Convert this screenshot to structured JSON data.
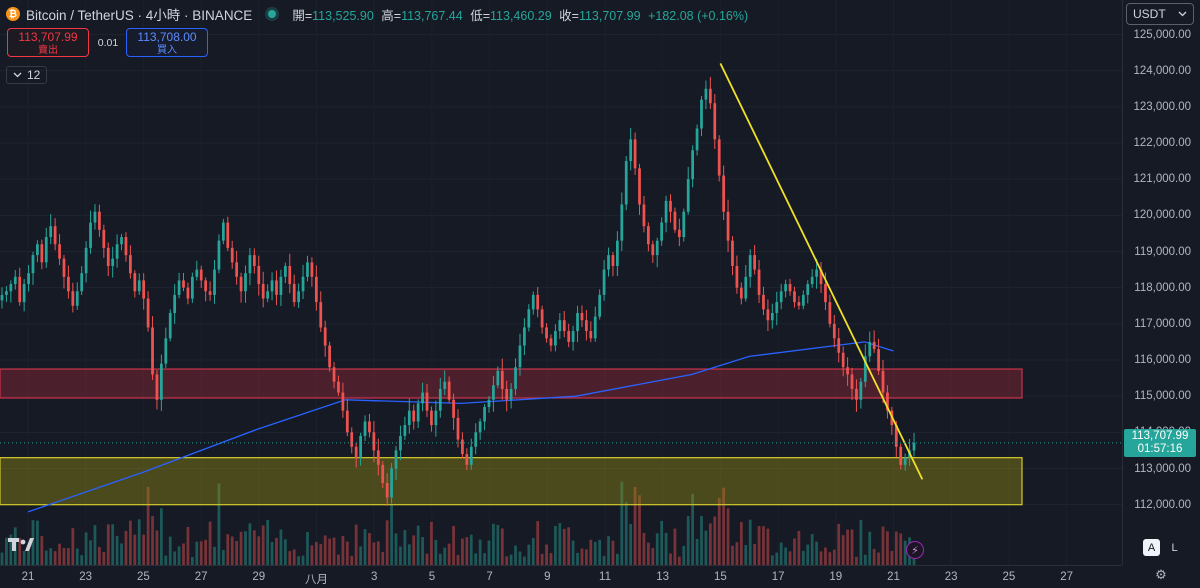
{
  "header": {
    "coin_glyph": "₿",
    "title": "Bitcoin / TetherUS · 4小時 · BINANCE",
    "open_label": "開=",
    "open_value": "113,525.90",
    "high_label": "高=",
    "high_value": "113,767.44",
    "low_label": "低=",
    "low_value": "113,460.29",
    "close_label": "收=",
    "close_value": "113,707.99",
    "change": "+182.08 (+0.16%)"
  },
  "trade": {
    "sell_price": "113,707.99",
    "sell_label": "賣出",
    "spread": "0.01",
    "buy_price": "113,708.00",
    "buy_label": "買入"
  },
  "indicator_toggle": {
    "count": "12"
  },
  "currency": {
    "label": "USDT"
  },
  "last_price": {
    "price": "113,707.99",
    "countdown": "01:57:16"
  },
  "scale_buttons": {
    "auto": "A",
    "log": "L"
  },
  "colors": {
    "up": "#26a69a",
    "down": "#ef5350",
    "ma": "#2962ff",
    "trendline": "#f2e027",
    "zone_red": "#b22a3a",
    "zone_yellow": "#c9c02a"
  },
  "icons": [
    "chevron-down-icon",
    "tradingview-logo-icon",
    "lightning-icon",
    "settings-gear-icon"
  ],
  "chart_data": {
    "type": "candlestick",
    "interval": "4h",
    "symbol": "BTCUSDT",
    "y_axis": {
      "scale": "linear",
      "ticks": [
        "125,000.00",
        "124,000.00",
        "123,000.00",
        "122,000.00",
        "121,000.00",
        "120,000.00",
        "119,000.00",
        "118,000.00",
        "117,000.00",
        "116,000.00",
        "115,000.00",
        "114,000.00",
        "113,000.00",
        "112,000.00"
      ],
      "tick_values": [
        125000,
        124000,
        123000,
        122000,
        121000,
        120000,
        119000,
        118000,
        117000,
        116000,
        115000,
        114000,
        113000,
        112000
      ]
    },
    "x_axis": {
      "ticks": [
        "21",
        "23",
        "25",
        "27",
        "29",
        "八月",
        "3",
        "5",
        "7",
        "9",
        "11",
        "13",
        "15",
        "17",
        "19",
        "21",
        "23",
        "25",
        "27"
      ]
    },
    "zones": [
      {
        "color": "red",
        "from": 114950,
        "to": 115750
      },
      {
        "color": "yellow",
        "from": 112000,
        "to": 113300
      }
    ],
    "trendline": {
      "from": {
        "date": "Aug 14",
        "price": 124200
      },
      "to": {
        "date": "Aug 21",
        "price": 112700
      }
    },
    "moving_average": [
      {
        "date": "Jul 21",
        "value": 111800
      },
      {
        "date": "Jul 25",
        "value": 112900
      },
      {
        "date": "Jul 29",
        "value": 114100
      },
      {
        "date": "Aug 1",
        "value": 114900
      },
      {
        "date": "Aug 5",
        "value": 114800
      },
      {
        "date": "Aug 9",
        "value": 115000
      },
      {
        "date": "Aug 13",
        "value": 115600
      },
      {
        "date": "Aug 15",
        "value": 116100
      },
      {
        "date": "Aug 19",
        "value": 116500
      },
      {
        "date": "Aug 20",
        "value": 116250
      }
    ],
    "candles_4h_close": [
      117800,
      117900,
      118100,
      118300,
      117600,
      118100,
      118400,
      118900,
      119200,
      118700,
      119400,
      119700,
      119200,
      118800,
      118300,
      117900,
      117500,
      117900,
      118400,
      119100,
      119800,
      120100,
      119600,
      119100,
      118600,
      118800,
      119200,
      119400,
      118900,
      118400,
      117900,
      118200,
      117700,
      116900,
      115600,
      114900,
      115900,
      116600,
      117300,
      117800,
      118200,
      118000,
      117700,
      118300,
      118500,
      118200,
      117900,
      117800,
      118500,
      119300,
      119800,
      119100,
      118700,
      118300,
      117900,
      118400,
      118900,
      118600,
      118100,
      117700,
      117900,
      118200,
      117800,
      118300,
      118600,
      118100,
      117600,
      117900,
      118300,
      118700,
      118300,
      117600,
      116900,
      116400,
      115800,
      115400,
      115100,
      114600,
      114000,
      113600,
      113300,
      113900,
      114300,
      114000,
      113500,
      113100,
      112600,
      112200,
      113000,
      113500,
      113900,
      114200,
      114600,
      114300,
      114800,
      115100,
      114600,
      114200,
      114600,
      115200,
      115400,
      114900,
      114400,
      113800,
      113400,
      113100,
      113600,
      114000,
      114300,
      114700,
      114900,
      115300,
      115700,
      115200,
      114900,
      115200,
      115800,
      116400,
      116900,
      117400,
      117800,
      117400,
      116900,
      116600,
      116400,
      116800,
      117100,
      116800,
      116500,
      116800,
      117300,
      117100,
      116800,
      116600,
      117200,
      117800,
      118500,
      118900,
      118600,
      119300,
      120300,
      121500,
      122100,
      121300,
      120300,
      119700,
      119200,
      118900,
      119300,
      119800,
      120400,
      120100,
      119600,
      119400,
      120100,
      121000,
      121800,
      122400,
      123200,
      123500,
      123100,
      122100,
      121100,
      120100,
      119300,
      118600,
      118000,
      117700,
      118300,
      118900,
      118500,
      117800,
      117400,
      117100,
      117300,
      117600,
      117900,
      118100,
      117900,
      117600,
      117500,
      117800,
      118100,
      118300,
      118500,
      118100,
      117600,
      117000,
      116600,
      116200,
      115800,
      115600,
      115200,
      114900,
      115400,
      116100,
      116500,
      116300,
      115700,
      115100,
      114600,
      114200,
      113600,
      113100,
      113300,
      113500,
      113708
    ],
    "last_close": 113707.99
  }
}
